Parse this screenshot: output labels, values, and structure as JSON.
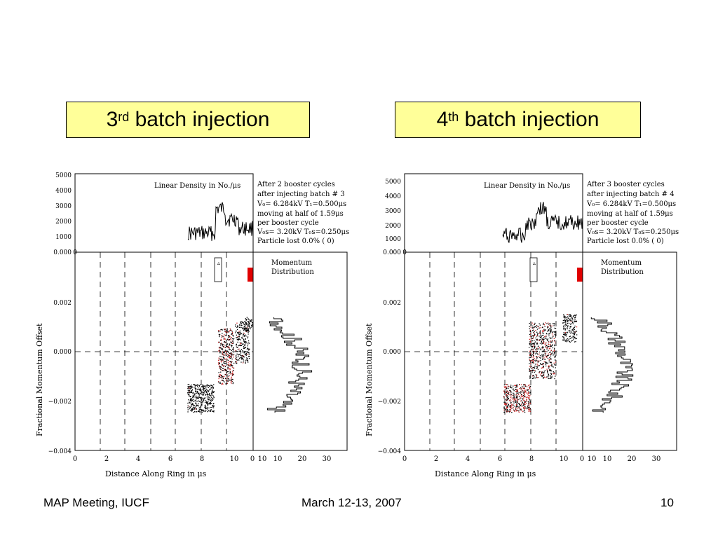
{
  "titles": {
    "left": {
      "num": "3",
      "sup": "rd",
      "rest": " batch injection"
    },
    "right": {
      "num": "4",
      "sup": "th",
      "rest": " batch injection"
    }
  },
  "footer": {
    "left": "MAP Meeting, IUCF",
    "center": "March 12-13, 2007",
    "right": "10"
  },
  "plot_common": {
    "density_title": "Linear Density in No./μs",
    "density_yticks": [
      "5000",
      "4000",
      "3000",
      "2000",
      "1000",
      "0.000"
    ],
    "ylabel": "Fractional Momentum Offset",
    "phase_yticks": [
      "0.002",
      "0.000",
      "−0.002",
      "−0.004"
    ],
    "xticks": [
      "0",
      "2",
      "4",
      "6",
      "8",
      "10"
    ],
    "xlabel": "Distance Along Ring in μs",
    "mom_title_1": "Momentum",
    "mom_title_2": "Distribution",
    "mom_xticks": [
      "0",
      "10",
      "20",
      "30"
    ],
    "top_zero_label": "0",
    "info_line3": "V₀= 6.284kV T₁=0.500μs",
    "info_line4": "moving at half of 1.59μs",
    "info_line5": "per booster cycle",
    "info_line6": "V₀s= 3.20kV T₀s=0.250μs",
    "info_line7": "Particle lost  0.0% (   0)"
  },
  "plots": {
    "left": {
      "info_line1": "After  2 booster cycles",
      "info_line2": "after injecting batch #  3"
    },
    "right": {
      "info_line1": "After  3 booster cycles",
      "info_line2": "after injecting batch #  4"
    }
  },
  "colors": {
    "title_bg": "#ffff99",
    "red_marker": "#e00000",
    "red_particles": "#cc2222"
  }
}
